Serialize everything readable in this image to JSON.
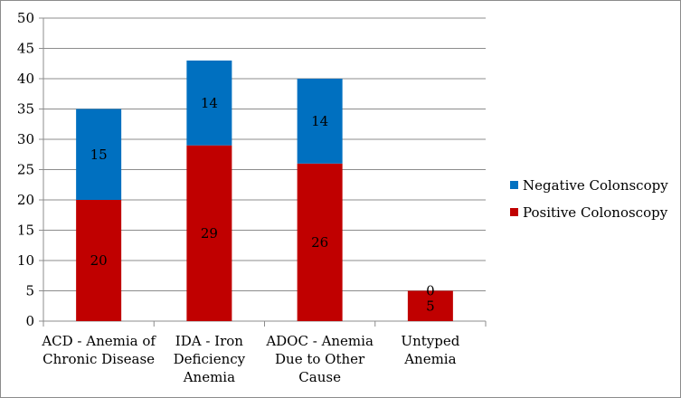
{
  "chart_data": {
    "type": "bar",
    "stacked": true,
    "categories": [
      [
        "ACD - Anemia of",
        "Chronic Disease"
      ],
      [
        "IDA - Iron",
        "Deficiency",
        "Anemia"
      ],
      [
        "ADOC - Anemia",
        "Due to Other",
        "Cause"
      ],
      [
        "Untyped",
        "Anemia"
      ]
    ],
    "series": [
      {
        "name": "Positive Colonoscopy",
        "color": "#c00000",
        "values": [
          20,
          29,
          26,
          5
        ]
      },
      {
        "name": "Negative Colonscopy",
        "color": "#0070c0",
        "values": [
          15,
          14,
          14,
          0
        ]
      }
    ],
    "ylim": [
      0,
      50
    ],
    "yticks": [
      "0",
      "5",
      "10",
      "15",
      "20",
      "25",
      "30",
      "35",
      "40",
      "45",
      "50"
    ],
    "grid": true,
    "legend": {
      "placement": "right",
      "entries": [
        {
          "label": "Negative Colonscopy",
          "color": "#0070c0"
        },
        {
          "label": "Positive Colonoscopy",
          "color": "#c00000"
        }
      ]
    },
    "title": "",
    "xlabel": "",
    "ylabel": ""
  }
}
